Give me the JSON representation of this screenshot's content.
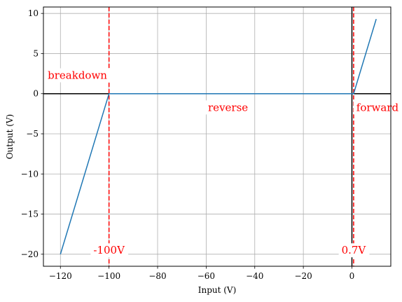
{
  "chart_data": {
    "type": "line",
    "xlabel": "Input (V)",
    "ylabel": "Output (V)",
    "xlim": [
      -127,
      16
    ],
    "ylim": [
      -21.5,
      10.8
    ],
    "grid": true,
    "x_ticks": [
      -120,
      -100,
      -80,
      -60,
      -40,
      -20,
      0
    ],
    "x_tick_labels": [
      "−120",
      "−100",
      "−80",
      "−60",
      "−40",
      "−20",
      "0"
    ],
    "y_ticks": [
      -20,
      -15,
      -10,
      -5,
      0,
      5,
      10
    ],
    "y_tick_labels": [
      "−20",
      "−15",
      "−10",
      "−5",
      "0",
      "5",
      "10"
    ],
    "series": [
      {
        "color": "#1f77b4",
        "x": [
          -120,
          -100,
          0.7,
          10
        ],
        "y": [
          -20,
          0,
          0,
          9.3
        ]
      }
    ],
    "reference_lines": {
      "horizontal": [
        {
          "y": 0,
          "color": "#000000",
          "style": "solid"
        }
      ],
      "vertical": [
        {
          "x": 0,
          "color": "#000000",
          "style": "solid"
        },
        {
          "x": -100,
          "color": "#ff0000",
          "style": "dashed"
        },
        {
          "x": 0.7,
          "color": "#ff0000",
          "style": "dashed"
        }
      ]
    },
    "annotations": [
      {
        "text": "breakdown",
        "x": -113,
        "y": 2.2,
        "color": "#ff0000"
      },
      {
        "text": "reverse",
        "x": -51,
        "y": -1.8,
        "color": "#ff0000"
      },
      {
        "text": "forward",
        "x": 10.5,
        "y": -1.8,
        "color": "#ff0000"
      },
      {
        "text": "-100V",
        "x": -100,
        "y": -19.6,
        "color": "#ff0000"
      },
      {
        "text": "0.7V",
        "x": 0.7,
        "y": -19.6,
        "color": "#ff0000"
      }
    ]
  }
}
